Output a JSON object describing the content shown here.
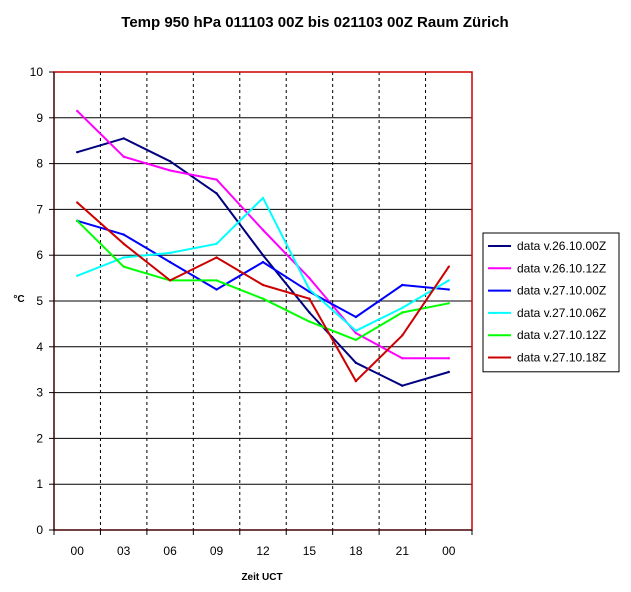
{
  "chart_data": {
    "type": "line",
    "title": "Temp 950 hPa 011103 00Z bis 021103 00Z Raum Zürich",
    "xlabel": "Zeit UCT",
    "ylabel": "°C",
    "categories": [
      "00",
      "03",
      "06",
      "09",
      "12",
      "15",
      "18",
      "21",
      "00"
    ],
    "ylim": [
      0,
      10
    ],
    "yticks": [
      0,
      1,
      2,
      3,
      4,
      5,
      6,
      7,
      8,
      9,
      10
    ],
    "grid": "horizontal solid, vertical dashed",
    "legend_position": "right",
    "series": [
      {
        "name": "data v.26.10.00Z",
        "color": "#000080",
        "values": [
          8.25,
          8.55,
          8.05,
          7.35,
          6.0,
          4.75,
          3.65,
          3.15,
          3.45
        ]
      },
      {
        "name": "data v.26.10.12Z",
        "color": "#ff00ff",
        "values": [
          9.15,
          8.15,
          7.85,
          7.65,
          6.55,
          5.5,
          4.3,
          3.75,
          3.75
        ]
      },
      {
        "name": "data v.27.10.00Z",
        "color": "#0000ff",
        "values": [
          6.75,
          6.45,
          5.85,
          5.25,
          5.85,
          5.2,
          4.65,
          5.35,
          5.25
        ]
      },
      {
        "name": "data v.27.10.06Z",
        "color": "#00ffff",
        "values": [
          5.55,
          5.95,
          6.05,
          6.25,
          7.25,
          5.25,
          4.35,
          4.85,
          5.45
        ]
      },
      {
        "name": "data v.27.10.12Z",
        "color": "#00ff00",
        "values": [
          6.75,
          5.75,
          5.45,
          5.45,
          5.05,
          4.55,
          4.15,
          4.75,
          4.95
        ]
      },
      {
        "name": "data v.27.10.18Z",
        "color": "#cc0000",
        "values": [
          7.15,
          6.25,
          5.45,
          5.95,
          5.35,
          5.05,
          3.25,
          4.25,
          5.75
        ]
      }
    ],
    "colors": {
      "plot_border": "#cc0000",
      "grid": "#000000",
      "axis": "#000000"
    }
  }
}
